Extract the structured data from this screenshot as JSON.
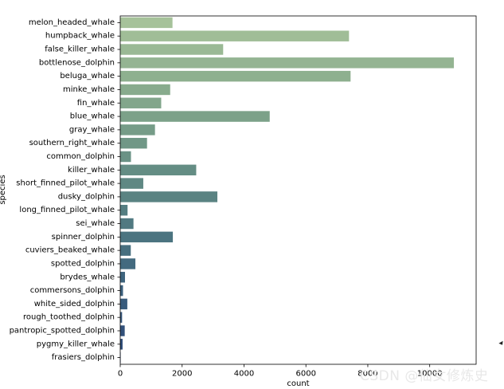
{
  "chart_data": {
    "type": "bar",
    "orientation": "horizontal",
    "title": "",
    "xlabel": "count",
    "ylabel": "species",
    "xlim": [
      0,
      11500
    ],
    "xticks": [
      0,
      2000,
      4000,
      6000,
      8000,
      10000
    ],
    "grid": false,
    "legend": "none",
    "categories": [
      "melon_headed_whale",
      "humpback_whale",
      "false_killer_whale",
      "bottlenose_dolphin",
      "beluga_whale",
      "minke_whale",
      "fin_whale",
      "blue_whale",
      "gray_whale",
      "southern_right_whale",
      "common_dolphin",
      "killer_whale",
      "short_finned_pilot_whale",
      "dusky_dolphin",
      "long_finned_pilot_whale",
      "sei_whale",
      "spinner_dolphin",
      "cuviers_beaked_whale",
      "spotted_dolphin",
      "brydes_whale",
      "commersons_dolphin",
      "white_sided_dolphin",
      "rough_toothed_dolphin",
      "pantropic_spotted_dolphin",
      "pygmy_killer_whale",
      "frasiers_dolphin"
    ],
    "values": [
      1689,
      7392,
      3326,
      10781,
      7443,
      1614,
      1324,
      4830,
      1123,
      866,
      347,
      2455,
      745,
      3139,
      237,
      428,
      1700,
      341,
      490,
      154,
      90,
      229,
      60,
      145,
      76,
      14
    ],
    "colors": [
      "#a6c29a",
      "#a0bd97",
      "#9ab995",
      "#94b492",
      "#8eb08f",
      "#88ab8d",
      "#82a68b",
      "#7ca189",
      "#769c88",
      "#709786",
      "#6a9285",
      "#648d84",
      "#5f8883",
      "#5a8382",
      "#557e82",
      "#507981",
      "#4b7480",
      "#476f7f",
      "#436a7f",
      "#3f657e",
      "#3b607d",
      "#385b7c",
      "#35567b",
      "#32517a",
      "#2f4c79",
      "#2c4778"
    ]
  },
  "watermark": "CSDN @仙女修炼史"
}
